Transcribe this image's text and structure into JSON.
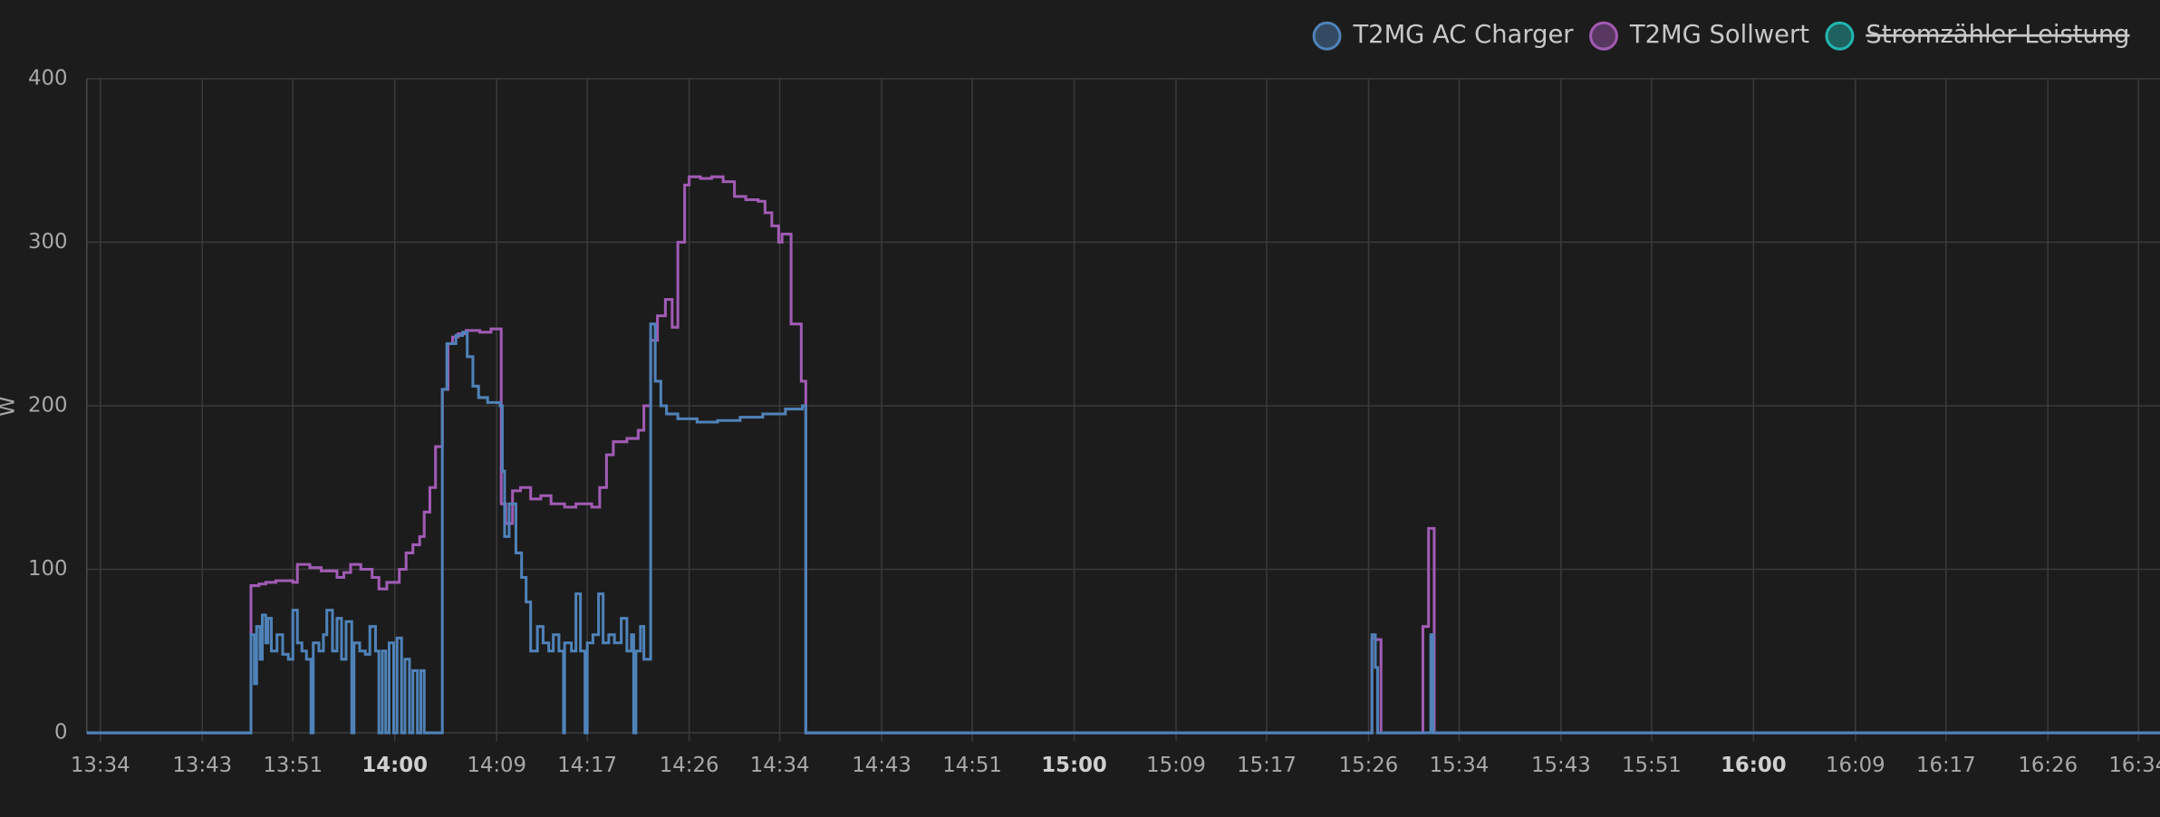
{
  "chart_data": {
    "type": "line",
    "y_label": "W",
    "xlim": [
      812.8,
      995.9
    ],
    "ylim": [
      0,
      400
    ],
    "yticks": [
      0,
      100,
      200,
      300,
      400
    ],
    "xticks": [
      {
        "value": 814,
        "label": "13:34"
      },
      {
        "value": 823,
        "label": "13:43"
      },
      {
        "value": 831,
        "label": "13:51"
      },
      {
        "value": 840,
        "label": "14:00"
      },
      {
        "value": 849,
        "label": "14:09"
      },
      {
        "value": 857,
        "label": "14:17"
      },
      {
        "value": 866,
        "label": "14:26"
      },
      {
        "value": 874,
        "label": "14:34"
      },
      {
        "value": 883,
        "label": "14:43"
      },
      {
        "value": 891,
        "label": "14:51"
      },
      {
        "value": 900,
        "label": "15:00"
      },
      {
        "value": 909,
        "label": "15:09"
      },
      {
        "value": 917,
        "label": "15:17"
      },
      {
        "value": 926,
        "label": "15:26"
      },
      {
        "value": 934,
        "label": "15:34"
      },
      {
        "value": 943,
        "label": "15:43"
      },
      {
        "value": 951,
        "label": "15:51"
      },
      {
        "value": 960,
        "label": "16:00"
      },
      {
        "value": 969,
        "label": "16:09"
      },
      {
        "value": 977,
        "label": "16:17"
      },
      {
        "value": 986,
        "label": "16:26"
      },
      {
        "value": 994,
        "label": "16:34"
      }
    ],
    "grid": true,
    "step": true,
    "legend_position": "top-right",
    "series": [
      {
        "name": "T2MG AC Charger",
        "color": "#4f82b8",
        "hidden": false,
        "x": [
          812.8,
          827.3,
          827.6,
          827.8,
          828.1,
          828.3,
          828.6,
          828.8,
          829.1,
          829.6,
          830.1,
          830.6,
          831.0,
          831.4,
          831.8,
          832.2,
          832.6,
          832.8,
          833.3,
          833.7,
          834.0,
          834.5,
          834.9,
          835.3,
          835.7,
          836.2,
          836.4,
          836.9,
          837.4,
          837.8,
          838.3,
          838.6,
          838.9,
          839.2,
          839.5,
          839.9,
          840.2,
          840.6,
          840.9,
          841.3,
          841.6,
          842.0,
          842.3,
          842.6,
          844.2,
          844.6,
          845.4,
          846.0,
          846.4,
          846.9,
          847.4,
          848.2,
          849.3,
          849.5,
          849.7,
          850.1,
          850.7,
          851.2,
          851.6,
          852.0,
          852.6,
          853.1,
          853.6,
          854.0,
          854.5,
          854.9,
          855.0,
          855.6,
          856.0,
          856.4,
          856.8,
          857.0,
          857.5,
          858.0,
          858.4,
          858.9,
          859.4,
          860.0,
          860.5,
          860.9,
          861.1,
          861.3,
          861.7,
          862.0,
          862.6,
          863.0,
          863.5,
          864.0,
          865.0,
          866.7,
          868.5,
          870.5,
          872.5,
          874.5,
          876.0,
          876.3,
          926.3,
          926.6,
          926.8,
          931.5,
          931.7,
          995.9
        ],
        "values": [
          0,
          60,
          30,
          65,
          45,
          72,
          55,
          70,
          50,
          60,
          48,
          45,
          75,
          55,
          50,
          45,
          0,
          55,
          50,
          60,
          75,
          50,
          70,
          45,
          68,
          0,
          55,
          50,
          48,
          65,
          50,
          0,
          50,
          0,
          55,
          0,
          58,
          0,
          45,
          0,
          38,
          0,
          38,
          0,
          210,
          238,
          243,
          245,
          230,
          212,
          205,
          202,
          200,
          160,
          120,
          140,
          110,
          95,
          80,
          50,
          65,
          55,
          50,
          60,
          50,
          0,
          55,
          50,
          85,
          50,
          0,
          55,
          60,
          85,
          55,
          60,
          55,
          70,
          50,
          60,
          0,
          50,
          65,
          45,
          250,
          215,
          200,
          195,
          192,
          190,
          191,
          193,
          195,
          198,
          200,
          0,
          60,
          40,
          0,
          60,
          0,
          0
        ]
      },
      {
        "name": "T2MG Sollwert",
        "color": "#a15bb4",
        "hidden": false,
        "x": [
          812.8,
          827.3,
          828.0,
          828.6,
          829.5,
          831.0,
          831.4,
          832.5,
          833.5,
          834.9,
          835.5,
          836.1,
          837.0,
          838.0,
          838.6,
          839.3,
          840.4,
          841.0,
          841.6,
          842.2,
          842.6,
          843.1,
          843.6,
          844.2,
          844.7,
          845.1,
          845.6,
          846.3,
          847.5,
          848.5,
          849.4,
          849.8,
          850.4,
          851.1,
          852.0,
          852.9,
          853.8,
          855.0,
          856.0,
          857.4,
          858.1,
          858.7,
          859.3,
          860.5,
          861.5,
          862.0,
          862.6,
          863.2,
          863.9,
          864.5,
          865.0,
          865.6,
          866.0,
          867.0,
          868.0,
          869.0,
          870.0,
          871.0,
          872.1,
          872.7,
          873.3,
          873.9,
          874.2,
          875.0,
          875.9,
          876.3,
          926.3,
          926.6,
          927.1,
          930.8,
          931.3,
          931.8,
          995.9
        ],
        "values": [
          0,
          90,
          91,
          92,
          93,
          92,
          103,
          101,
          99,
          95,
          98,
          103,
          100,
          95,
          88,
          92,
          100,
          110,
          115,
          120,
          135,
          150,
          175,
          210,
          238,
          242,
          244,
          246,
          245,
          247,
          140,
          128,
          148,
          150,
          143,
          145,
          140,
          138,
          140,
          138,
          150,
          170,
          178,
          180,
          185,
          200,
          240,
          255,
          265,
          248,
          300,
          335,
          340,
          339,
          340,
          337,
          328,
          326,
          325,
          318,
          310,
          300,
          305,
          250,
          215,
          0,
          58,
          57,
          0,
          65,
          125,
          0,
          0
        ]
      },
      {
        "name": "Stromzähler Leistung",
        "color": "#22b5b0",
        "hidden": true
      }
    ]
  }
}
